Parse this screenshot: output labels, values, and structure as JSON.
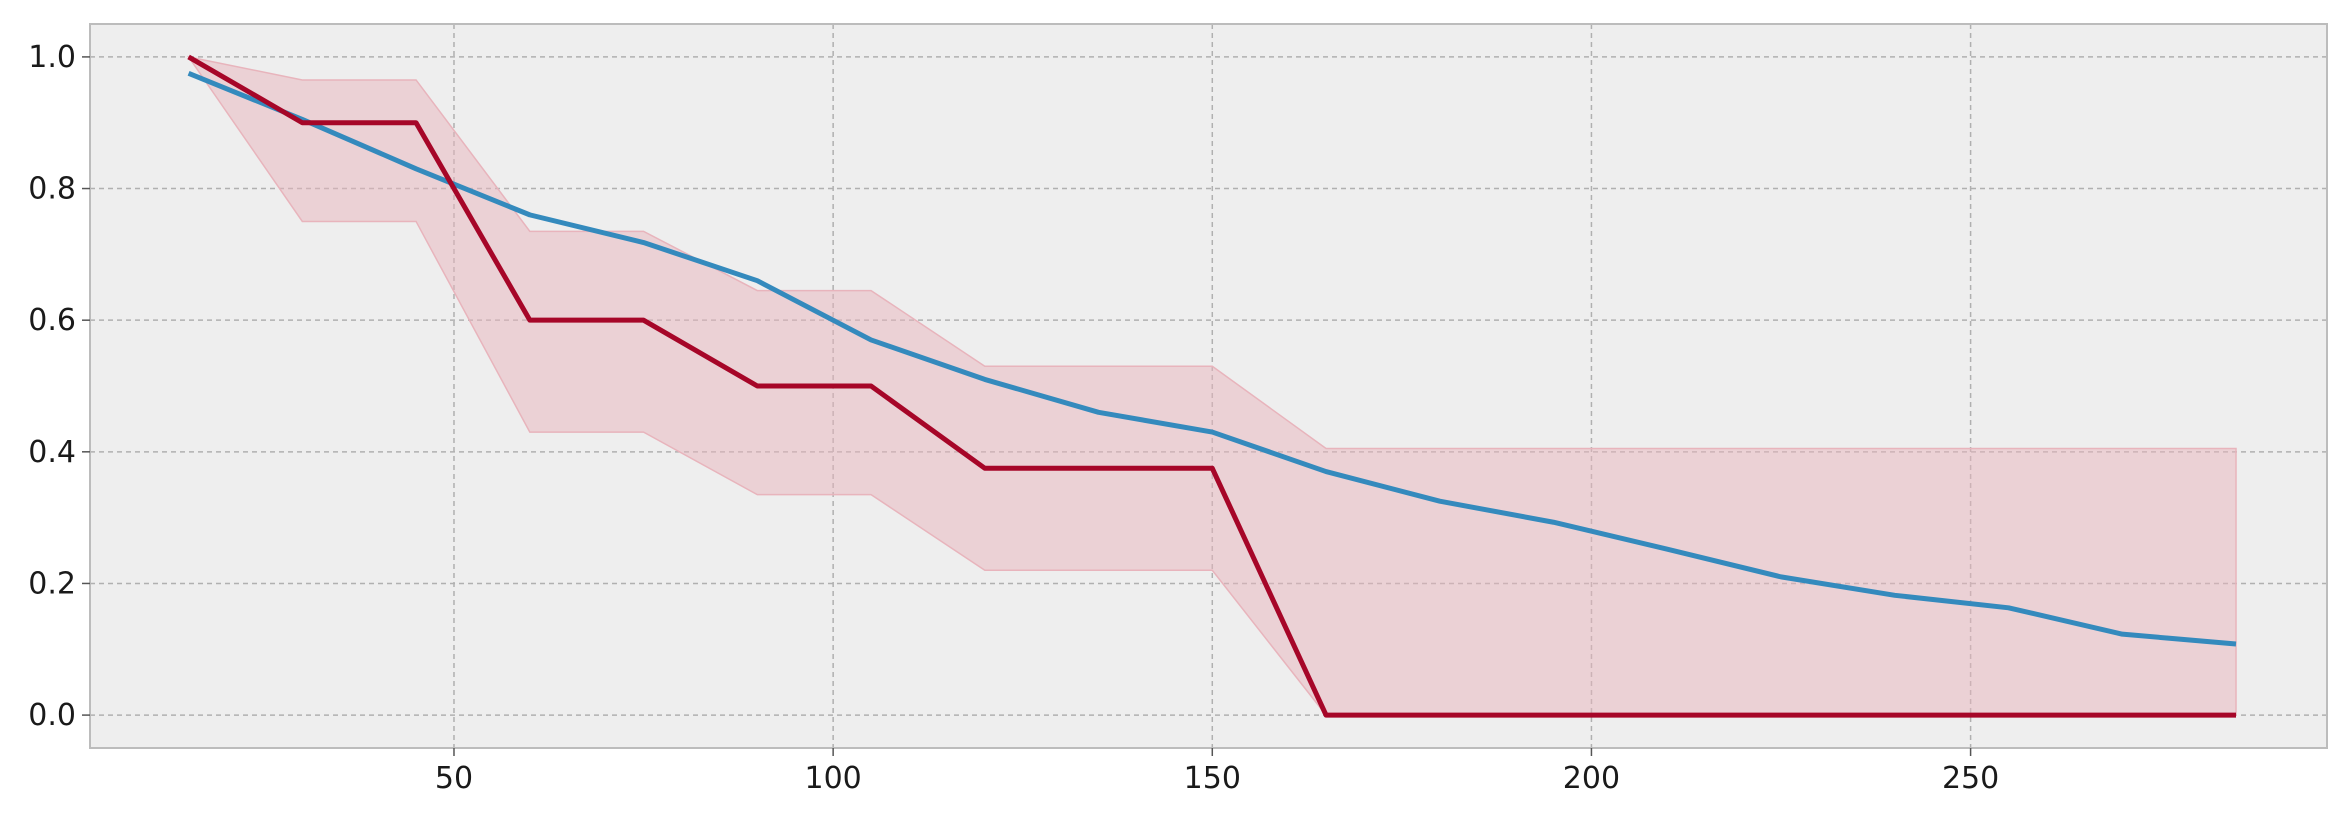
{
  "chart_data": {
    "type": "line",
    "title": "",
    "xlabel": "",
    "ylabel": "",
    "xlim": [
      2,
      297
    ],
    "ylim": [
      -0.05,
      1.05
    ],
    "grid": true,
    "x_ticks": [
      {
        "value": 50,
        "label": "50"
      },
      {
        "value": 100,
        "label": "100"
      },
      {
        "value": 150,
        "label": "150"
      },
      {
        "value": 200,
        "label": "200"
      },
      {
        "value": 250,
        "label": "250"
      }
    ],
    "y_ticks": [
      {
        "value": 0.0,
        "label": "0.0"
      },
      {
        "value": 0.2,
        "label": "0.2"
      },
      {
        "value": 0.4,
        "label": "0.4"
      },
      {
        "value": 0.6,
        "label": "0.6"
      },
      {
        "value": 0.8,
        "label": "0.8"
      },
      {
        "value": 1.0,
        "label": "1.0"
      }
    ],
    "series": [
      {
        "color": "#348abd",
        "x": [
          15,
          30,
          45,
          60,
          75,
          90,
          105,
          120,
          135,
          150,
          165,
          180,
          195,
          210,
          225,
          240,
          255,
          270,
          285
        ],
        "y": [
          0.975,
          0.905,
          0.83,
          0.76,
          0.718,
          0.66,
          0.57,
          0.51,
          0.46,
          0.43,
          0.37,
          0.325,
          0.293,
          0.252,
          0.21,
          0.182,
          0.163,
          0.123,
          0.108
        ]
      },
      {
        "color": "#a60628",
        "x": [
          15,
          30,
          45,
          60,
          75,
          90,
          105,
          120,
          135,
          150,
          165,
          180,
          195,
          210,
          225,
          240,
          255,
          270,
          285
        ],
        "y": [
          1.0,
          0.9,
          0.9,
          0.6,
          0.6,
          0.5,
          0.5,
          0.375,
          0.375,
          0.375,
          0.0,
          0.0,
          0.0,
          0.0,
          0.0,
          0.0,
          0.0,
          0.0,
          0.0
        ],
        "band": {
          "color": "#e8b4bc",
          "x": [
            15,
            30,
            45,
            60,
            75,
            90,
            105,
            120,
            135,
            150,
            165,
            180,
            195,
            210,
            225,
            240,
            255,
            270,
            285
          ],
          "lower": [
            1.0,
            0.75,
            0.75,
            0.43,
            0.43,
            0.335,
            0.335,
            0.22,
            0.22,
            0.22,
            0.0,
            0.0,
            0.0,
            0.0,
            0.0,
            0.0,
            0.0,
            0.0,
            0.0
          ],
          "upper": [
            1.0,
            0.965,
            0.965,
            0.735,
            0.735,
            0.645,
            0.645,
            0.53,
            0.53,
            0.53,
            0.405,
            0.405,
            0.405,
            0.405,
            0.405,
            0.405,
            0.405,
            0.405,
            0.405
          ]
        }
      }
    ]
  },
  "style": {
    "axes_background": "#eeeeee",
    "frame_color": "#bcbcbc",
    "grid_color": "#b0b0b0"
  }
}
